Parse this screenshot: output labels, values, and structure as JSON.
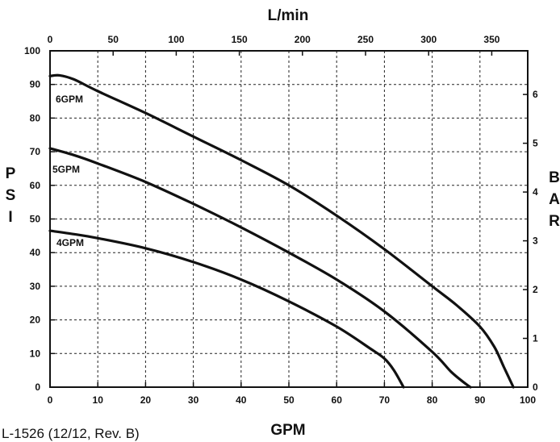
{
  "chart_data": {
    "type": "line",
    "xlabel": "GPM",
    "x2label": "L/min",
    "ylabel": [
      "P",
      "S",
      "I"
    ],
    "y2label": [
      "B",
      "A",
      "R"
    ],
    "xlim": [
      0,
      100
    ],
    "ylim": [
      0,
      100
    ],
    "x2lim": [
      0,
      378.5
    ],
    "y2lim": [
      0,
      6.895
    ],
    "xticks": [
      "0",
      "10",
      "20",
      "30",
      "40",
      "50",
      "60",
      "70",
      "80",
      "90",
      "100"
    ],
    "yticks": [
      "0",
      "10",
      "20",
      "30",
      "40",
      "50",
      "60",
      "70",
      "80",
      "90",
      "100"
    ],
    "x2ticks": [
      "0",
      "50",
      "100",
      "150",
      "200",
      "250",
      "300",
      "350"
    ],
    "y2ticks": [
      "0",
      "1",
      "2",
      "3",
      "4",
      "5",
      "6"
    ],
    "grid": true,
    "series": [
      {
        "name": "6GPM",
        "x": [
          0,
          2,
          5,
          10,
          20,
          30,
          40,
          50,
          60,
          70,
          80,
          85,
          90,
          93,
          95,
          97
        ],
        "y": [
          92.5,
          92.7,
          91.5,
          88,
          81.5,
          74.5,
          67.5,
          60,
          51,
          41,
          30,
          24.5,
          18,
          12,
          6,
          0
        ]
      },
      {
        "name": "5GPM",
        "x": [
          0,
          5,
          10,
          20,
          30,
          40,
          50,
          60,
          70,
          80,
          84,
          87,
          88
        ],
        "y": [
          71,
          69,
          66.5,
          61,
          54.5,
          47.5,
          40,
          32,
          22.5,
          10.5,
          4.5,
          1,
          0
        ]
      },
      {
        "name": "4GPM",
        "x": [
          0,
          5,
          10,
          20,
          30,
          40,
          50,
          60,
          67,
          70,
          72,
          74
        ],
        "y": [
          46.5,
          45.5,
          44.3,
          41.3,
          37.2,
          32,
          25.5,
          18,
          11.5,
          8.5,
          5,
          0
        ]
      }
    ],
    "footnote": "L-1526 (12/12, Rev. B)"
  }
}
